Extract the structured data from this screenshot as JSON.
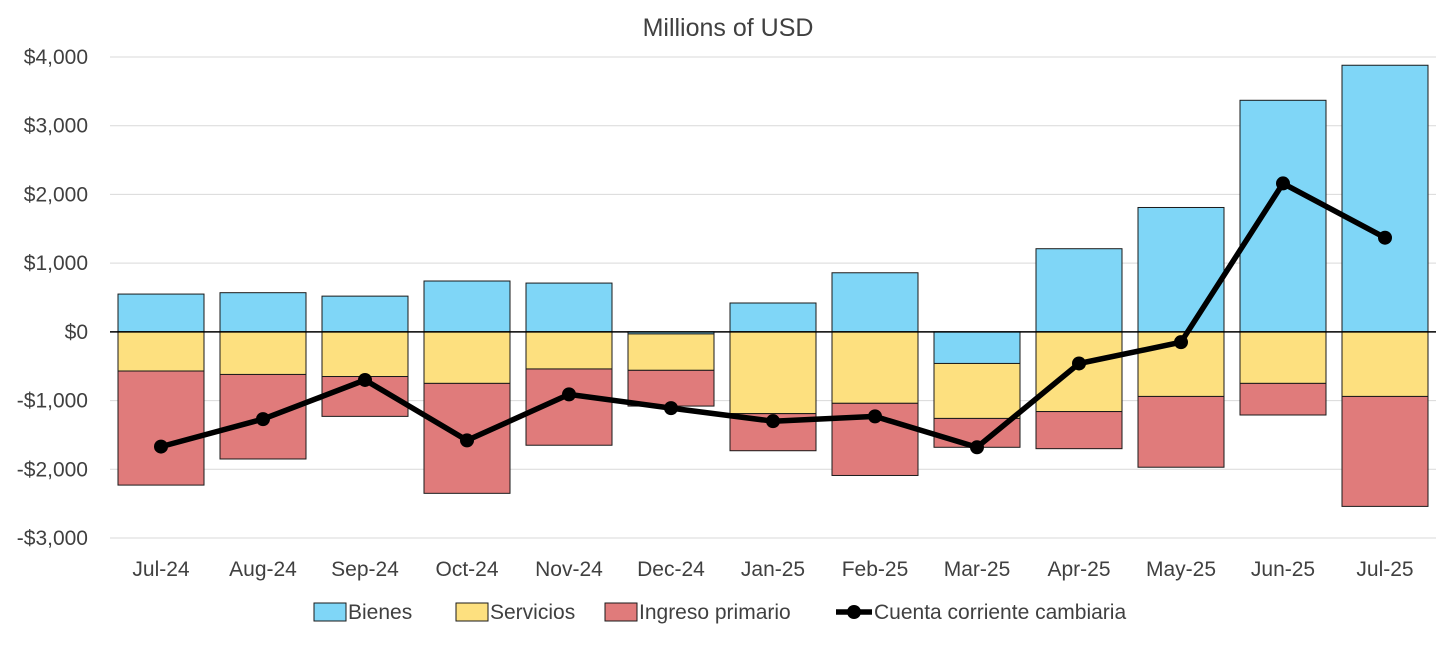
{
  "chart_data": {
    "type": "bar",
    "stacked": true,
    "title": "Millions of USD",
    "categories": [
      "Jul-24",
      "Aug-24",
      "Sep-24",
      "Oct-24",
      "Nov-24",
      "Dec-24",
      "Jan-25",
      "Feb-25",
      "Mar-25",
      "Apr-25",
      "May-25",
      "Jun-25",
      "Jul-25"
    ],
    "ylim": [
      -3000,
      4000
    ],
    "yticks": [
      4000,
      3000,
      2000,
      1000,
      0,
      -1000,
      -2000,
      -3000
    ],
    "ytick_labels": [
      "$4,000",
      "$3,000",
      "$2,000",
      "$1,000",
      "$0",
      "-$1,000",
      "-$2,000",
      "-$3,000"
    ],
    "grid": true,
    "legend_position": "bottom",
    "series": [
      {
        "name": "Bienes",
        "kind": "bar",
        "color": "#7fd6f7",
        "values": [
          550,
          570,
          520,
          740,
          710,
          -30,
          420,
          860,
          -460,
          1210,
          1810,
          3370,
          3880
        ]
      },
      {
        "name": "Servicios",
        "kind": "bar",
        "color": "#fde07f",
        "values": [
          -570,
          -620,
          -650,
          -750,
          -540,
          -530,
          -1190,
          -1040,
          -800,
          -1160,
          -940,
          -750,
          -940
        ]
      },
      {
        "name": "Ingreso primario",
        "kind": "bar",
        "color": "#e07b7b",
        "values": [
          -1660,
          -1230,
          -580,
          -1600,
          -1110,
          -520,
          -540,
          -1050,
          -420,
          -540,
          -1030,
          -460,
          -1600
        ]
      },
      {
        "name": "Cuenta corriente cambiaria",
        "kind": "line",
        "color": "#000000",
        "values": [
          -1670,
          -1270,
          -700,
          -1580,
          -910,
          -1110,
          -1300,
          -1230,
          -1680,
          -460,
          -150,
          2160,
          1370
        ]
      }
    ]
  }
}
